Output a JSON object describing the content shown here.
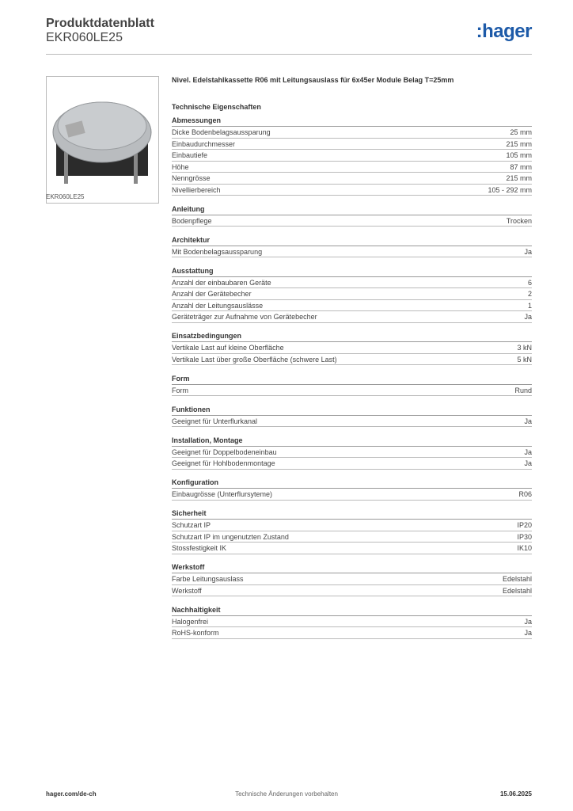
{
  "header": {
    "title": "Produktdatenblatt",
    "subtitle": "EKR060LE25",
    "logo": ":hager"
  },
  "image_caption": "EKR060LE25",
  "product_title": "Nivel. Edelstahlkassette R06 mit Leitungsauslass für 6x45er Module Belag T=25mm",
  "section_title": "Technische Eigenschaften",
  "groups": [
    {
      "title": "Abmessungen",
      "rows": [
        [
          "Dicke Bodenbelagsaussparung",
          "25 mm"
        ],
        [
          "Einbaudurchmesser",
          "215 mm"
        ],
        [
          "Einbautiefe",
          "105 mm"
        ],
        [
          "Höhe",
          "87 mm"
        ],
        [
          "Nenngrösse",
          "215 mm"
        ],
        [
          "Nivellierbereich",
          "105 - 292 mm"
        ]
      ]
    },
    {
      "title": "Anleitung",
      "rows": [
        [
          "Bodenpflege",
          "Trocken"
        ]
      ]
    },
    {
      "title": "Architektur",
      "rows": [
        [
          "Mit Bodenbelagsaussparung",
          "Ja"
        ]
      ]
    },
    {
      "title": "Ausstattung",
      "rows": [
        [
          "Anzahl der einbaubaren Geräte",
          "6"
        ],
        [
          "Anzahl der Gerätebecher",
          "2"
        ],
        [
          "Anzahl der Leitungsauslässe",
          "1"
        ],
        [
          "Geräteträger zur Aufnahme von Gerätebecher",
          "Ja"
        ]
      ]
    },
    {
      "title": "Einsatzbedingungen",
      "rows": [
        [
          "Vertikale Last auf kleine Oberfläche",
          "3 kN"
        ],
        [
          "Vertikale Last über große Oberfläche (schwere Last)",
          "5 kN"
        ]
      ]
    },
    {
      "title": "Form",
      "rows": [
        [
          "Form",
          "Rund"
        ]
      ]
    },
    {
      "title": "Funktionen",
      "rows": [
        [
          "Geeignet für Unterflurkanal",
          "Ja"
        ]
      ]
    },
    {
      "title": "Installation, Montage",
      "rows": [
        [
          "Geeignet für Doppelbodeneinbau",
          "Ja"
        ],
        [
          "Geeignet für Hohlbodenmontage",
          "Ja"
        ]
      ]
    },
    {
      "title": "Konfiguration",
      "rows": [
        [
          "Einbaugrösse (Unterflursyteme)",
          "R06"
        ]
      ]
    },
    {
      "title": "Sicherheit",
      "rows": [
        [
          "Schutzart IP",
          "IP20"
        ],
        [
          "Schutzart IP im ungenutzten Zustand",
          "IP30"
        ],
        [
          "Stossfestigkeit IK",
          "IK10"
        ]
      ]
    },
    {
      "title": "Werkstoff",
      "rows": [
        [
          "Farbe Leitungsauslass",
          "Edelstahl"
        ],
        [
          "Werkstoff",
          "Edelstahl"
        ]
      ]
    },
    {
      "title": "Nachhaltigkeit",
      "rows": [
        [
          "Halogenfrei",
          "Ja"
        ],
        [
          "RoHS-konform",
          "Ja"
        ]
      ]
    }
  ],
  "footer": {
    "left": "hager.com/de-ch",
    "center": "Technische Änderungen vorbehalten",
    "right": "15.06.2025"
  }
}
